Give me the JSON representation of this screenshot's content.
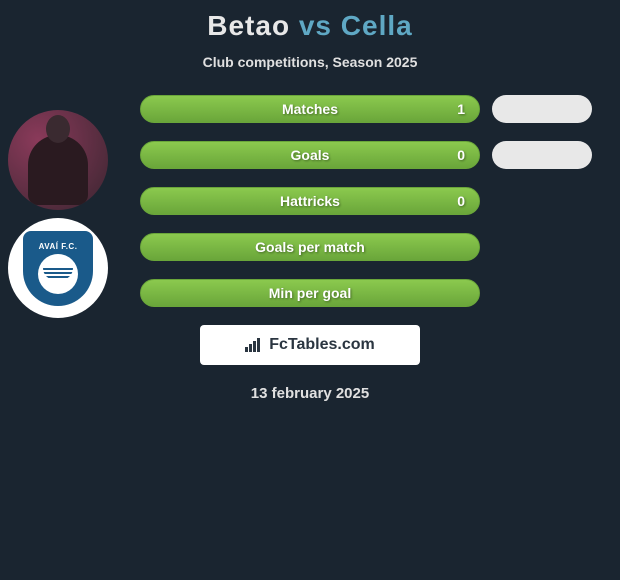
{
  "header": {
    "player1": "Betao",
    "vs": "vs",
    "player2": "Cella",
    "subtitle": "Club competitions, Season 2025"
  },
  "stats": [
    {
      "label": "Matches",
      "value_left": "1",
      "bar_left_width": 340,
      "bar_right_width": 100,
      "show_value": true
    },
    {
      "label": "Goals",
      "value_left": "0",
      "bar_left_width": 340,
      "bar_right_width": 100,
      "show_value": true
    },
    {
      "label": "Hattricks",
      "value_left": "0",
      "bar_left_width": 340,
      "bar_right_width": 0,
      "show_value": true
    },
    {
      "label": "Goals per match",
      "value_left": "",
      "bar_left_width": 340,
      "bar_right_width": 0,
      "show_value": false
    },
    {
      "label": "Min per goal",
      "value_left": "",
      "bar_left_width": 340,
      "bar_right_width": 0,
      "show_value": false
    }
  ],
  "avatars": {
    "avatar2_text": "AVAÍ F.C."
  },
  "branding": "FcTables.com",
  "date": "13 february 2025",
  "colors": {
    "bg": "#1a2530",
    "bar_green": "#8bc94e",
    "bar_white": "#e8e8e8",
    "accent": "#5fa8c4"
  }
}
